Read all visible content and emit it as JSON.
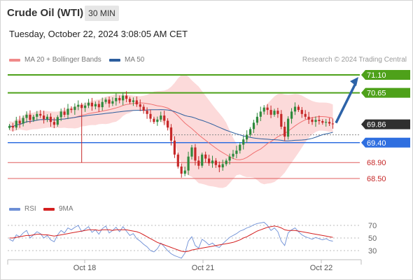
{
  "header": {
    "instrument": "Crude Oil (WTI)",
    "timeframe": "30 MIN",
    "datetime": "Tuesday, October 22, 2024 3:08:05 AM CET"
  },
  "research_credit": "Research © 2024 Trading Central",
  "colors": {
    "up_candle": "#2f8a3d",
    "down_candle": "#c62828",
    "bollinger_band": "#fbd4d4",
    "ma20": "#f07070",
    "ma50": "#2c5e9e",
    "green_level": "#4ea11a",
    "blue_level": "#2f6fe0",
    "red_level": "#e05c5c",
    "arrow": "#2d63a8",
    "rsi": "#6d8fd6",
    "rsi_ma": "#d42020"
  },
  "chart_data": [
    {
      "type": "candlestick",
      "title": "",
      "legend": [
        {
          "name": "MA 20 + Bollinger Bands",
          "color": "#f08a8a"
        },
        {
          "name": "MA 50",
          "color": "#2c5e9e"
        }
      ],
      "x_ticks": [
        "Oct 18",
        "Oct 21",
        "Oct 22"
      ],
      "current_price": 69.86,
      "levels": [
        {
          "value": 71.1,
          "label": "71.10",
          "kind": "resistance",
          "style": "green"
        },
        {
          "value": 70.65,
          "label": "70.65",
          "kind": "resistance",
          "style": "green"
        },
        {
          "value": 69.86,
          "label": "69.86",
          "kind": "last-price",
          "style": "dark"
        },
        {
          "value": 69.4,
          "label": "69.40",
          "kind": "pivot",
          "style": "blue"
        },
        {
          "value": 68.9,
          "label": "68.90",
          "kind": "support",
          "style": "red"
        },
        {
          "value": 68.5,
          "label": "68.50",
          "kind": "support",
          "style": "red"
        }
      ],
      "forecast_arrow": {
        "from": 69.86,
        "to": 71.1
      },
      "ohlc_close": [
        69.82,
        69.78,
        69.95,
        69.88,
        70.02,
        70.1,
        69.97,
        70.05,
        70.12,
        70.08,
        69.99,
        70.05,
        69.92,
        69.85,
        70.04,
        70.18,
        70.1,
        70.25,
        70.22,
        70.3,
        70.35,
        70.27,
        70.33,
        70.4,
        70.31,
        70.37,
        70.29,
        70.42,
        70.48,
        70.38,
        70.44,
        70.52,
        70.46,
        70.58,
        70.5,
        70.42,
        70.46,
        70.36,
        70.3,
        70.2,
        70.12,
        70.0,
        69.92,
        69.98,
        70.08,
        69.95,
        69.78,
        69.45,
        69.1,
        68.8,
        68.62,
        68.7,
        69.05,
        69.28,
        68.95,
        68.82,
        69.1,
        69.0,
        68.88,
        68.95,
        68.84,
        68.78,
        68.86,
        68.95,
        69.05,
        69.12,
        69.2,
        69.35,
        69.48,
        69.6,
        69.74,
        69.9,
        70.05,
        70.18,
        70.28,
        70.22,
        70.1,
        70.2,
        70.12,
        69.8,
        69.55,
        70.0,
        70.18,
        70.3,
        70.22,
        70.12,
        70.05,
        69.98,
        69.92,
        69.97,
        69.94,
        69.9,
        69.92,
        69.88,
        69.86
      ],
      "rsi": {
        "levels": [
          70,
          50,
          30
        ],
        "rsi_name": "RSI",
        "ma_name": "9MA",
        "rsi_values": [
          48,
          45,
          55,
          52,
          58,
          62,
          50,
          55,
          60,
          57,
          50,
          54,
          47,
          44,
          55,
          62,
          58,
          66,
          63,
          67,
          70,
          60,
          64,
          68,
          59,
          63,
          56,
          65,
          69,
          58,
          62,
          67,
          60,
          68,
          61,
          54,
          57,
          49,
          45,
          40,
          36,
          30,
          28,
          33,
          42,
          36,
          30,
          25,
          22,
          20,
          18,
          26,
          45,
          52,
          38,
          34,
          48,
          44,
          39,
          42,
          37,
          35,
          41,
          46,
          51,
          54,
          57,
          61,
          63,
          66,
          68,
          71,
          73,
          74,
          75,
          70,
          62,
          66,
          60,
          45,
          38,
          58,
          63,
          66,
          60,
          55,
          52,
          50,
          48,
          51,
          49,
          47,
          49,
          46,
          45
        ],
        "ma_values": [
          50,
          50,
          51,
          52,
          53,
          54,
          54,
          55,
          56,
          56,
          55,
          55,
          54,
          53,
          54,
          55,
          56,
          57,
          58,
          59,
          60,
          61,
          62,
          63,
          63,
          63,
          62,
          63,
          63,
          63,
          62,
          63,
          63,
          63,
          63,
          62,
          61,
          60,
          58,
          55,
          52,
          49,
          46,
          43,
          41,
          39,
          37,
          35,
          33,
          31,
          29,
          28,
          29,
          31,
          32,
          33,
          34,
          35,
          36,
          37,
          38,
          39,
          40,
          41,
          42,
          43,
          45,
          47,
          50,
          52,
          55,
          58,
          61,
          63,
          65,
          67,
          68,
          69,
          68,
          66,
          63,
          62,
          62,
          62,
          61,
          60,
          59,
          58,
          57,
          56,
          55,
          54,
          53,
          52,
          51
        ]
      }
    }
  ]
}
